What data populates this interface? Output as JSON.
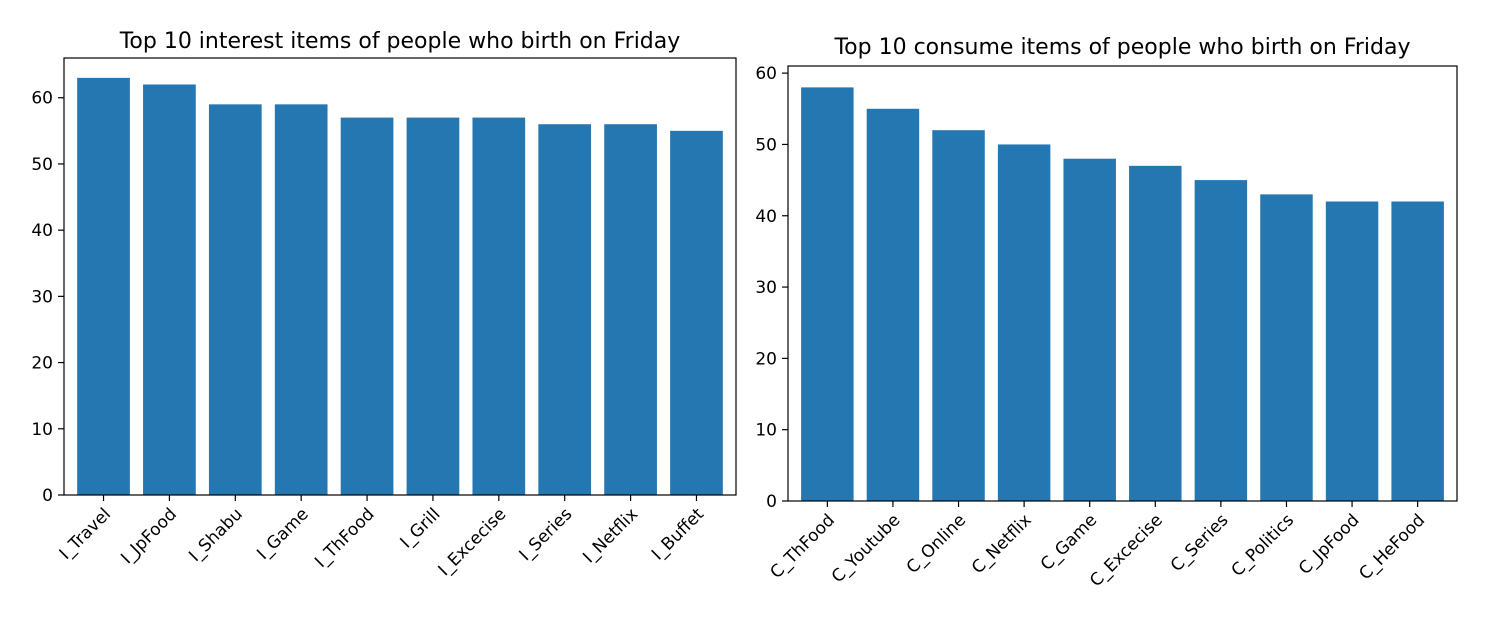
{
  "chart_data": [
    {
      "type": "bar",
      "title": "Top 10 interest items of people who birth on Friday",
      "xlabel": "",
      "ylabel": "",
      "categories": [
        "I_Travel",
        "I_JpFood",
        "I_Shabu",
        "I_Game",
        "I_ThFood",
        "I_Grill",
        "I_Excecise",
        "I_Series",
        "I_Netflix",
        "I_Buffet"
      ],
      "values": [
        63,
        62,
        59,
        59,
        57,
        57,
        57,
        56,
        56,
        55
      ],
      "ylim": [
        0,
        66
      ],
      "yticks": [
        0,
        10,
        20,
        30,
        40,
        50,
        60
      ],
      "color": "#2577b2",
      "grid": false,
      "legend": "none"
    },
    {
      "type": "bar",
      "title": "Top 10 consume items of people who birth on Friday",
      "xlabel": "",
      "ylabel": "",
      "categories": [
        "C_ThFood",
        "C_Youtube",
        "C_Online",
        "C_Netflix",
        "C_Game",
        "C_Excecise",
        "C_Series",
        "C_Politics",
        "C_JpFood",
        "C_HeFood"
      ],
      "values": [
        58,
        55,
        52,
        50,
        48,
        47,
        45,
        43,
        42,
        42
      ],
      "ylim": [
        0,
        61
      ],
      "yticks": [
        0,
        10,
        20,
        30,
        40,
        50,
        60
      ],
      "color": "#2577b2",
      "grid": false,
      "legend": "none"
    }
  ]
}
